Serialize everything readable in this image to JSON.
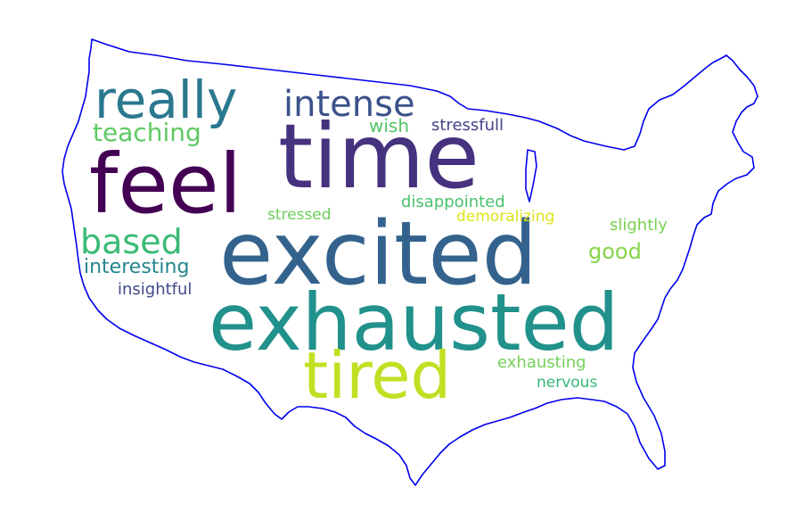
{
  "outline_color": "#0000ee",
  "words": [
    {
      "text": "excited",
      "color": "#33638d"
    },
    {
      "text": "exhausted",
      "color": "#21918c"
    },
    {
      "text": "time",
      "color": "#46327e"
    },
    {
      "text": "feel",
      "color": "#440154"
    },
    {
      "text": "tired",
      "color": "#c2df23"
    },
    {
      "text": "really",
      "color": "#2a788e"
    },
    {
      "text": "intense",
      "color": "#3b528b"
    },
    {
      "text": "based",
      "color": "#3bbb75"
    },
    {
      "text": "teaching",
      "color": "#5ec962"
    },
    {
      "text": "wish",
      "color": "#52c569"
    },
    {
      "text": "stressfull",
      "color": "#414487"
    },
    {
      "text": "disappointed",
      "color": "#4ac16d"
    },
    {
      "text": "stressed",
      "color": "#6ccd5a"
    },
    {
      "text": "demoralizing",
      "color": "#dde318"
    },
    {
      "text": "slightly",
      "color": "#7ad151"
    },
    {
      "text": "good",
      "color": "#86d549"
    },
    {
      "text": "interesting",
      "color": "#25858e"
    },
    {
      "text": "insightful",
      "color": "#3e4989"
    },
    {
      "text": "exhausting",
      "color": "#73d056"
    },
    {
      "text": "nervous",
      "color": "#35b779"
    }
  ]
}
